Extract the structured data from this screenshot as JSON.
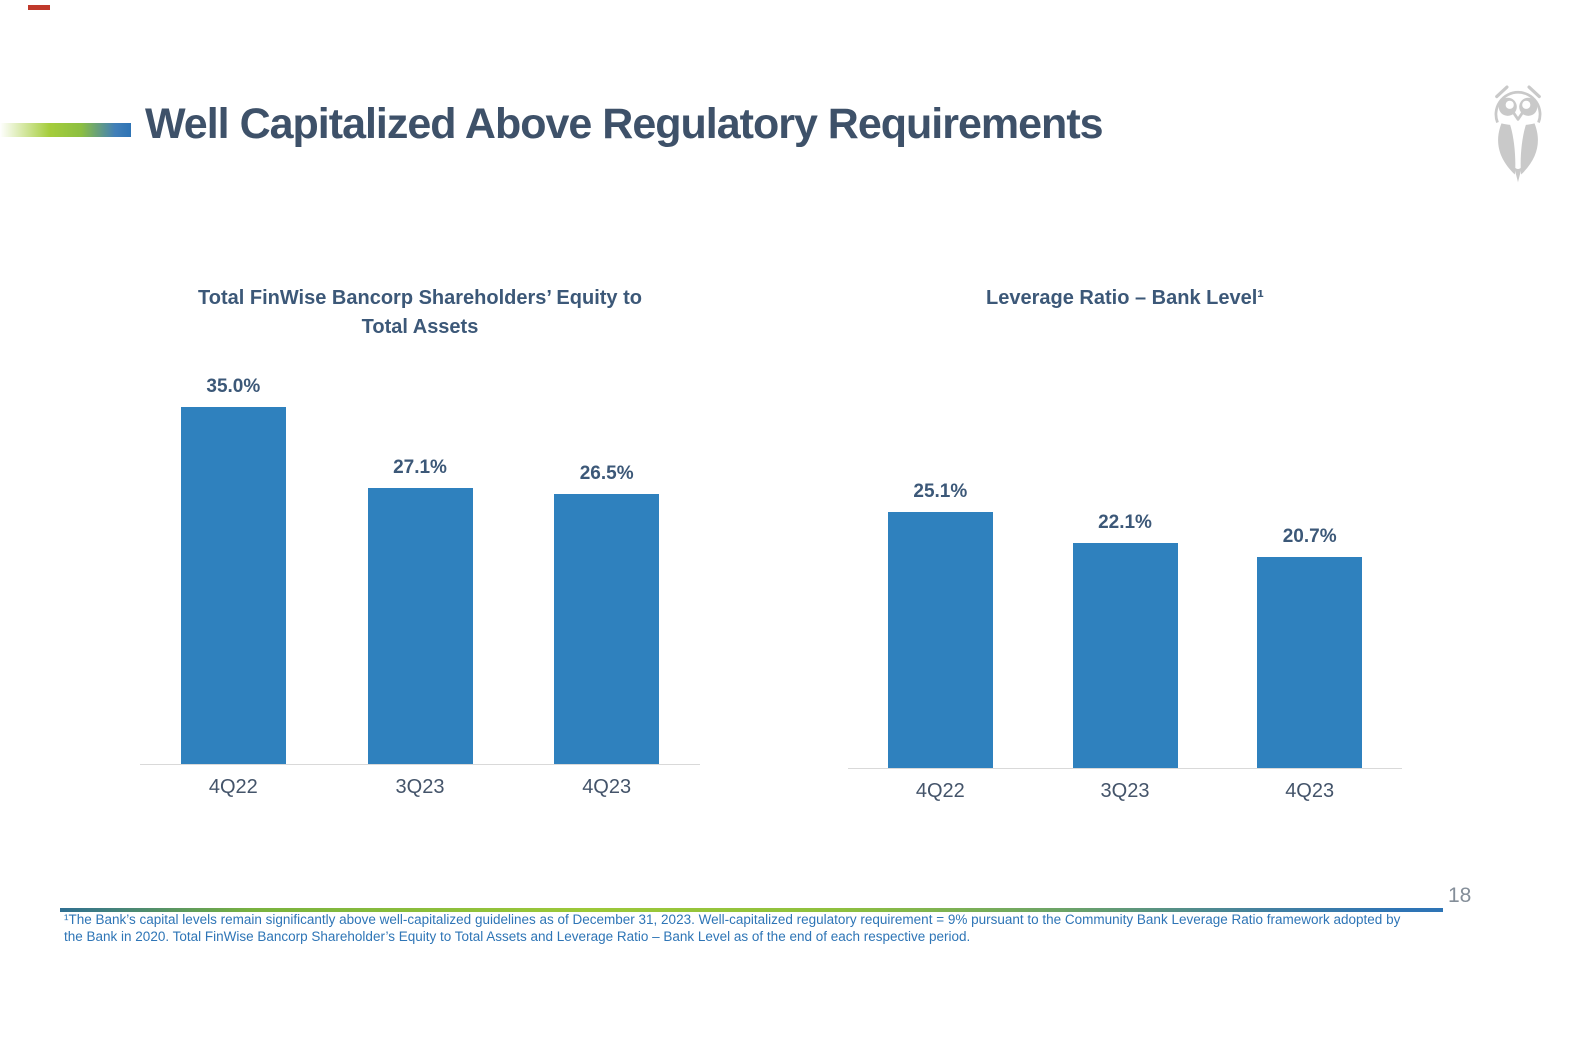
{
  "slide": {
    "title": "Well Capitalized Above Regulatory Requirements",
    "page_number": "18",
    "footnote": "¹The Bank’s capital levels remain significantly above well-capitalized guidelines as of December 31, 2023. Well-capitalized regulatory requirement = 9% pursuant to the Community Bank Leverage Ratio framework adopted by the Bank in 2020. Total FinWise Bancorp Shareholder’s Equity to Total Assets and Leverage Ratio – Bank Level as of the end of each respective period.",
    "logo": "finwise-owl-icon"
  },
  "colors": {
    "bar_fill": "#2F81BE",
    "slide_title_text": "#3E5169",
    "chart_text": "#3C5878",
    "category_text": "#44546A",
    "footnote_text": "#2E75B6",
    "page_number_text": "#848E99",
    "axis_line": "#D9D9D9",
    "accent_green": "#9CC839",
    "accent_blue": "#2E74B5",
    "logo_gray": "#C9C9C9"
  },
  "chart_data": [
    {
      "type": "bar",
      "title": "Total FinWise Bancorp Shareholders’ Equity to Total Assets",
      "title_lines": [
        "Total FinWise Bancorp Shareholders’ Equity to",
        "Total Assets"
      ],
      "categories": [
        "4Q22",
        "3Q23",
        "4Q23"
      ],
      "values": [
        35.0,
        27.1,
        26.5
      ],
      "value_labels": [
        "35.0%",
        "27.1%",
        "26.5%"
      ],
      "unit": "%",
      "bar_color": "#2F81BE",
      "grid": false,
      "legend": false,
      "y_axis_visible": false
    },
    {
      "type": "bar",
      "title": "Leverage Ratio – Bank Level¹",
      "title_lines": [
        "Leverage Ratio – Bank Level¹"
      ],
      "categories": [
        "4Q22",
        "3Q23",
        "4Q23"
      ],
      "values": [
        25.1,
        22.1,
        20.7
      ],
      "value_labels": [
        "25.1%",
        "22.1%",
        "20.7%"
      ],
      "unit": "%",
      "bar_color": "#2F81BE",
      "grid": false,
      "legend": false,
      "y_axis_visible": false
    }
  ]
}
